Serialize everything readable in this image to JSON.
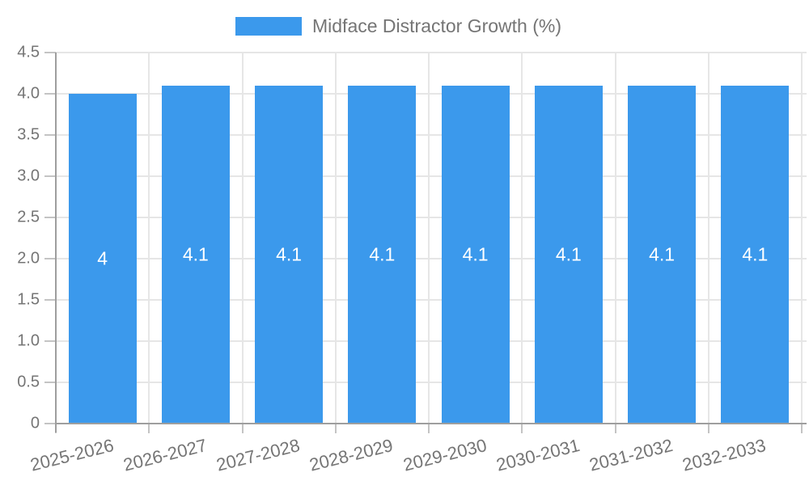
{
  "chart_data": {
    "type": "bar",
    "title": "Midface Distractor Growth (%)",
    "categories": [
      "2025-2026",
      "2026-2027",
      "2027-2028",
      "2028-2029",
      "2029-2030",
      "2030-2031",
      "2031-2032",
      "2032-2033"
    ],
    "values": [
      4,
      4.1,
      4.1,
      4.1,
      4.1,
      4.1,
      4.1,
      4.1
    ],
    "bar_labels": [
      "4",
      "4.1",
      "4.1",
      "4.1",
      "4.1",
      "4.1",
      "4.1",
      "4.1"
    ],
    "xlabel": "",
    "ylabel": "",
    "ylim": [
      0,
      4.5
    ],
    "ytick_labels": [
      "4.5",
      "4.0",
      "3.5",
      "3.0",
      "2.5",
      "2.0",
      "1.5",
      "1.0",
      "0.5",
      "0"
    ],
    "ytick_values": [
      4.5,
      4.0,
      3.5,
      3.0,
      2.5,
      2.0,
      1.5,
      1.0,
      0.5,
      0
    ],
    "grid": "on",
    "legend_position": "top-center",
    "colors": {
      "bar": "#3b99ec",
      "text": "#757575",
      "bar_label": "#ffffff",
      "gridline": "#e6e6e6",
      "axis": "#9e9e9e",
      "tick": "#c4c4c4",
      "background": "#ffffff"
    }
  }
}
